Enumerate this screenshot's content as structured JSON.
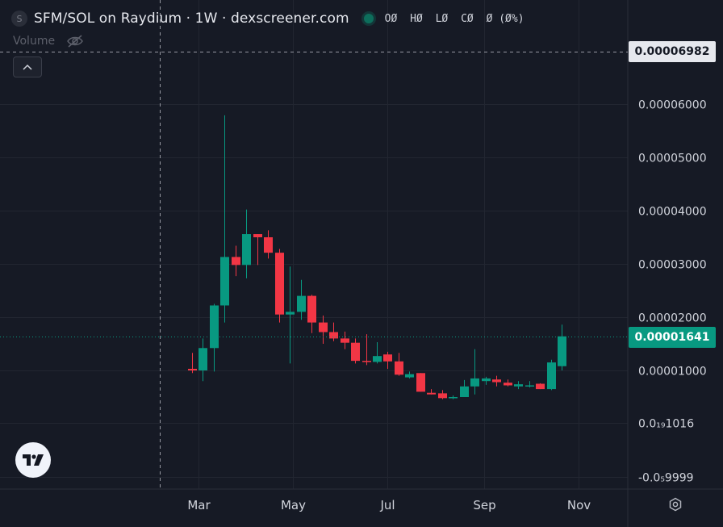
{
  "legend": {
    "symbol_icon": "S",
    "title": "SFM/SOL on Raydium · 1W · dexscreener.com",
    "ohlc": [
      "OØ",
      "HØ",
      "LØ",
      "CØ",
      "Ø (Ø%)"
    ]
  },
  "volume": {
    "label": "Volume",
    "icon": "eye-off-icon"
  },
  "price_scale": {
    "crosshair_label": "0.00006982",
    "last_price_label": "0.00001641"
  },
  "colors": {
    "background": "#161a25",
    "grid": "#222631",
    "up": "#089981",
    "down": "#f23645",
    "text": "#d1d4dc"
  },
  "chart_data": {
    "type": "candlestick",
    "title": "SFM/SOL on Raydium · 1W · dexscreener.com",
    "xlabel": "",
    "ylabel": "",
    "ylim": [
      -1e-05,
      6.97e-05
    ],
    "y_ticks": [
      {
        "value": 6e-05,
        "label": "0.00006000"
      },
      {
        "value": 5e-05,
        "label": "0.00005000"
      },
      {
        "value": 4e-05,
        "label": "0.00004000"
      },
      {
        "value": 3e-05,
        "label": "0.00003000"
      },
      {
        "value": 2e-05,
        "label": "0.00002000"
      },
      {
        "value": 1e-05,
        "label": "0.00001000"
      },
      {
        "value": 1.016e-07,
        "label": "0.0₁₉1016"
      },
      {
        "value": -9.9999e-06,
        "label": "-0.0₅9999"
      }
    ],
    "x_ticks": [
      {
        "label": "Mar",
        "date": "2024-03-01"
      },
      {
        "label": "May",
        "date": "2024-05-01"
      },
      {
        "label": "Jul",
        "date": "2024-07-01"
      },
      {
        "label": "Sep",
        "date": "2024-09-01"
      },
      {
        "label": "Nov",
        "date": "2024-11-01"
      }
    ],
    "candles": [
      {
        "date": "2024-02-26",
        "open": 1.03e-05,
        "high": 1.33e-05,
        "low": 9.5e-06,
        "close": 1e-05
      },
      {
        "date": "2024-03-04",
        "open": 1e-05,
        "high": 1.6e-05,
        "low": 8e-06,
        "close": 1.42e-05
      },
      {
        "date": "2024-03-11",
        "open": 1.42e-05,
        "high": 2.25e-05,
        "low": 9.8e-06,
        "close": 2.22e-05
      },
      {
        "date": "2024-03-18",
        "open": 2.22e-05,
        "high": 5.79e-05,
        "low": 1.9e-05,
        "close": 3.13e-05
      },
      {
        "date": "2024-03-25",
        "open": 3.13e-05,
        "high": 3.34e-05,
        "low": 2.77e-05,
        "close": 2.98e-05
      },
      {
        "date": "2024-04-01",
        "open": 2.98e-05,
        "high": 4.02e-05,
        "low": 2.73e-05,
        "close": 3.56e-05
      },
      {
        "date": "2024-04-08",
        "open": 3.56e-05,
        "high": 3.56e-05,
        "low": 2.98e-05,
        "close": 3.5e-05
      },
      {
        "date": "2024-04-15",
        "open": 3.5e-05,
        "high": 3.63e-05,
        "low": 3.1e-05,
        "close": 3.21e-05
      },
      {
        "date": "2024-04-22",
        "open": 3.21e-05,
        "high": 3.28e-05,
        "low": 1.9e-05,
        "close": 2.05e-05
      },
      {
        "date": "2024-04-29",
        "open": 2.05e-05,
        "high": 2.95e-05,
        "low": 1.13e-05,
        "close": 2.1e-05
      },
      {
        "date": "2024-05-06",
        "open": 2.1e-05,
        "high": 2.7e-05,
        "low": 1.95e-05,
        "close": 2.4e-05
      },
      {
        "date": "2024-05-13",
        "open": 2.4e-05,
        "high": 2.42e-05,
        "low": 1.7e-05,
        "close": 1.9e-05
      },
      {
        "date": "2024-05-20",
        "open": 1.9e-05,
        "high": 2.03e-05,
        "low": 1.5e-05,
        "close": 1.72e-05
      },
      {
        "date": "2024-05-27",
        "open": 1.72e-05,
        "high": 1.9e-05,
        "low": 1.55e-05,
        "close": 1.6e-05
      },
      {
        "date": "2024-06-03",
        "open": 1.6e-05,
        "high": 1.73e-05,
        "low": 1.4e-05,
        "close": 1.52e-05
      },
      {
        "date": "2024-06-10",
        "open": 1.52e-05,
        "high": 1.6e-05,
        "low": 1.13e-05,
        "close": 1.18e-05
      },
      {
        "date": "2024-06-17",
        "open": 1.18e-05,
        "high": 1.68e-05,
        "low": 1.1e-05,
        "close": 1.16e-05
      },
      {
        "date": "2024-06-24",
        "open": 1.16e-05,
        "high": 1.53e-05,
        "low": 1.13e-05,
        "close": 1.27e-05
      },
      {
        "date": "2024-07-01",
        "open": 1.3e-05,
        "high": 1.35e-05,
        "low": 1.03e-05,
        "close": 1.17e-05
      },
      {
        "date": "2024-07-08",
        "open": 1.17e-05,
        "high": 1.33e-05,
        "low": 9e-06,
        "close": 9.2e-06
      },
      {
        "date": "2024-07-15",
        "open": 8.7e-06,
        "high": 9.8e-06,
        "low": 8.5e-06,
        "close": 9.3e-06
      },
      {
        "date": "2024-07-22",
        "open": 9.5e-06,
        "high": 9.5e-06,
        "low": 6e-06,
        "close": 6e-06
      },
      {
        "date": "2024-07-29",
        "open": 5.8e-06,
        "high": 6.5e-06,
        "low": 5.5e-06,
        "close": 5.5e-06
      },
      {
        "date": "2024-08-05",
        "open": 5.7e-06,
        "high": 6.3e-06,
        "low": 4.6e-06,
        "close": 4.8e-06
      },
      {
        "date": "2024-08-12",
        "open": 5e-06,
        "high": 5.3e-06,
        "low": 4.6e-06,
        "close": 5e-06
      },
      {
        "date": "2024-08-19",
        "open": 5e-06,
        "high": 8.2e-06,
        "low": 5e-06,
        "close": 7e-06
      },
      {
        "date": "2024-08-26",
        "open": 7e-06,
        "high": 1.4e-05,
        "low": 5.5e-06,
        "close": 8.5e-06
      },
      {
        "date": "2024-09-02",
        "open": 8e-06,
        "high": 8.8e-06,
        "low": 7.3e-06,
        "close": 8.5e-06
      },
      {
        "date": "2024-09-09",
        "open": 8.3e-06,
        "high": 9e-06,
        "low": 7e-06,
        "close": 7.8e-06
      },
      {
        "date": "2024-09-16",
        "open": 7.7e-06,
        "high": 8.3e-06,
        "low": 7e-06,
        "close": 7.2e-06
      },
      {
        "date": "2024-09-23",
        "open": 7e-06,
        "high": 8e-06,
        "low": 6.5e-06,
        "close": 7.4e-06
      },
      {
        "date": "2024-09-30",
        "open": 7.2e-06,
        "high": 8e-06,
        "low": 6.8e-06,
        "close": 7.2e-06
      },
      {
        "date": "2024-10-07",
        "open": 7.5e-06,
        "high": 7.6e-06,
        "low": 6.5e-06,
        "close": 6.5e-06
      },
      {
        "date": "2024-10-14",
        "open": 6.5e-06,
        "high": 1.2e-05,
        "low": 6.3e-06,
        "close": 1.15e-05
      },
      {
        "date": "2024-10-21",
        "open": 1.08e-05,
        "high": 1.86e-05,
        "low": 1e-05,
        "close": 1.64e-05
      }
    ],
    "crosshair": {
      "date": "2024-02-05",
      "value": 6.982e-05
    },
    "last_price": 1.641e-05,
    "grid": true
  }
}
